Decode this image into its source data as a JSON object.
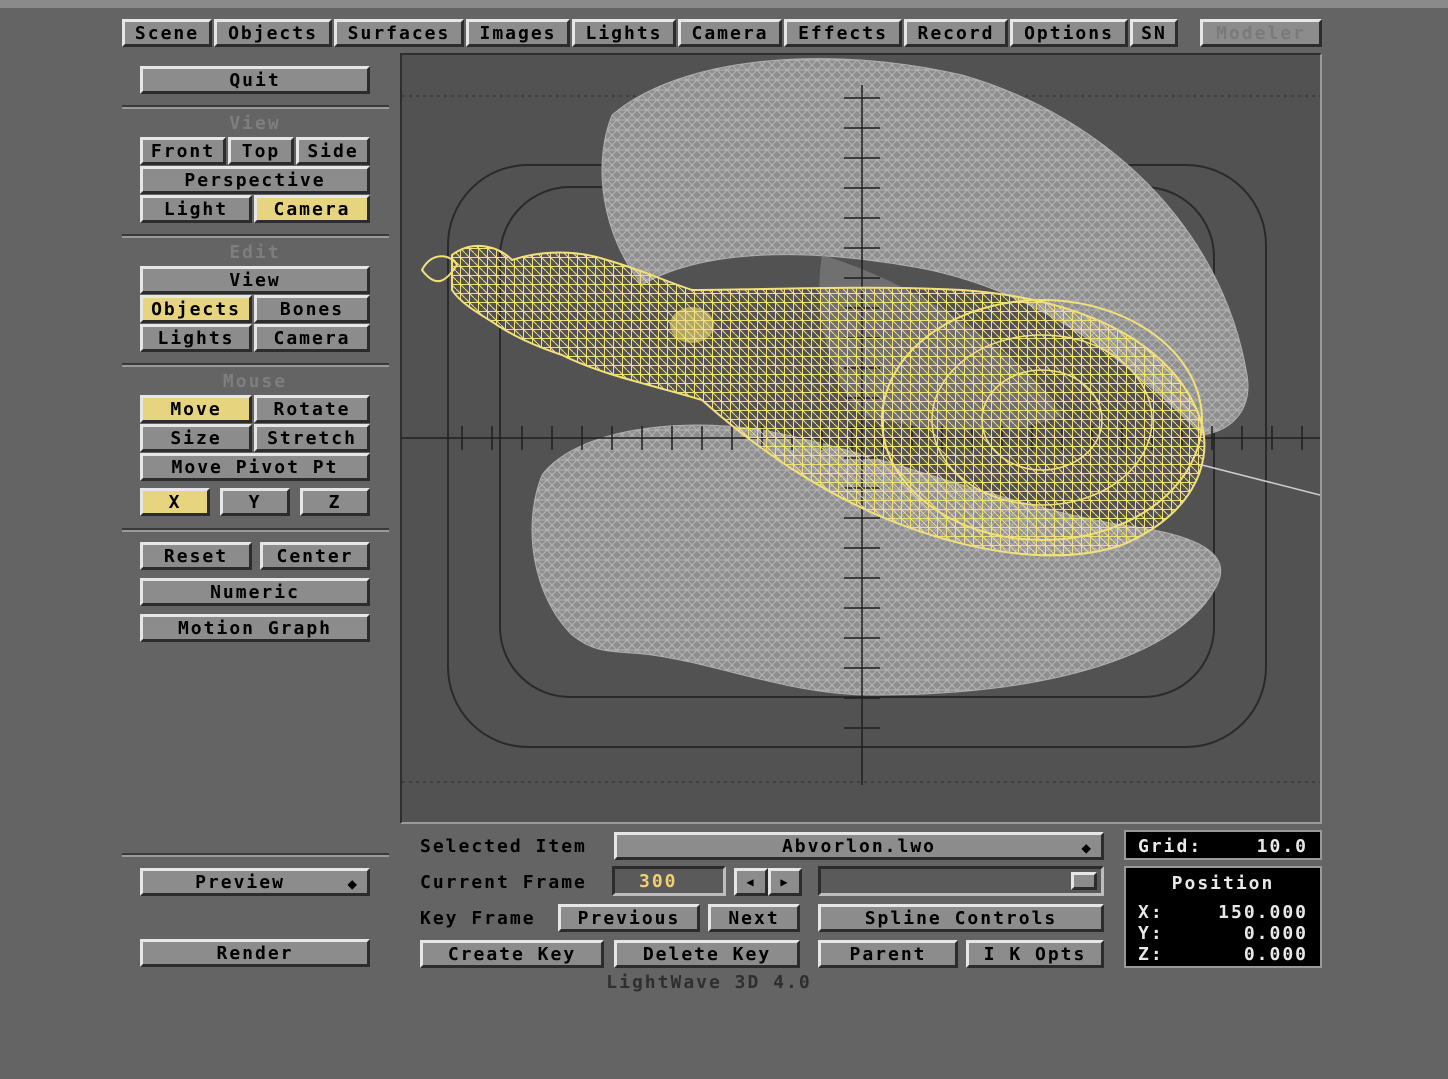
{
  "app": {
    "version_label": "LightWave 3D 4.0"
  },
  "menu": {
    "tabs": [
      "Scene",
      "Objects",
      "Surfaces",
      "Images",
      "Lights",
      "Camera",
      "Effects",
      "Record",
      "Options",
      "SN"
    ],
    "modeler": "Modeler"
  },
  "left": {
    "quit": "Quit",
    "view_title": "View",
    "view": {
      "front": "Front",
      "top": "Top",
      "side": "Side",
      "perspective": "Perspective",
      "light": "Light",
      "camera": "Camera",
      "selected": "Camera"
    },
    "edit_title": "Edit",
    "edit": {
      "view": "View",
      "objects": "Objects",
      "bones": "Bones",
      "lights": "Lights",
      "camera": "Camera",
      "selected": "Objects"
    },
    "mouse_title": "Mouse",
    "mouse": {
      "move": "Move",
      "rotate": "Rotate",
      "size": "Size",
      "stretch": "Stretch",
      "move_pivot": "Move Pivot Pt",
      "selected": "Move"
    },
    "axes": {
      "x": "X",
      "y": "Y",
      "z": "Z",
      "selected": "X"
    },
    "reset": "Reset",
    "center": "Center",
    "numeric": "Numeric",
    "motion_graph": "Motion Graph",
    "preview": "Preview",
    "render": "Render"
  },
  "bottom": {
    "selected_item_label": "Selected Item",
    "selected_item_value": "Abvorlon.lwo",
    "current_frame_label": "Current Frame",
    "current_frame_value": "300",
    "key_frame_label": "Key Frame",
    "previous": "Previous",
    "next": "Next",
    "spline_controls": "Spline Controls",
    "create_key": "Create Key",
    "delete_key": "Delete Key",
    "parent": "Parent",
    "ik_opts": "I K Opts",
    "popup_arrows": "◆",
    "step_left": "◀",
    "step_right": "▶"
  },
  "info": {
    "grid_label": "Grid:",
    "grid_value": "10.0",
    "position_title": "Position",
    "x_label": "X:",
    "x_value": "150.000",
    "y_label": "Y:",
    "y_value": "0.000",
    "z_label": "Z:",
    "z_value": "0.000"
  },
  "colors": {
    "selected_object": "#f2e07a",
    "background_object": "#a8a8a8",
    "button_on": "#e6d47e"
  }
}
